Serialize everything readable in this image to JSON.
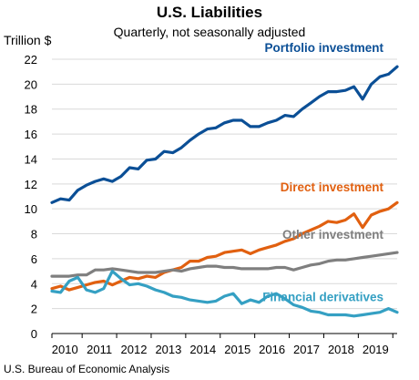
{
  "chart_data": {
    "type": "line",
    "title": "U.S. Liabilities",
    "subtitle": "Quarterly, not seasonally adjusted",
    "ylabel": "Trillion $",
    "xlabel": "",
    "source": "U.S. Bureau of Economic Analysis",
    "ylim": [
      0,
      22
    ],
    "yticks": [
      0,
      2,
      4,
      6,
      8,
      10,
      12,
      14,
      16,
      18,
      20,
      22
    ],
    "xticks": [
      "2010",
      "2011",
      "2012",
      "2013",
      "2014",
      "2015",
      "2016",
      "2017",
      "2018",
      "2019"
    ],
    "x_start": "2010-Q1",
    "grid": true,
    "series": [
      {
        "name": "Portfolio investment",
        "color": "#0b4f96",
        "values": [
          10.5,
          10.8,
          10.7,
          11.5,
          11.9,
          12.2,
          12.4,
          12.2,
          12.6,
          13.3,
          13.2,
          13.9,
          14.0,
          14.6,
          14.5,
          14.9,
          15.5,
          16.0,
          16.4,
          16.5,
          16.9,
          17.1,
          17.1,
          16.6,
          16.6,
          16.9,
          17.1,
          17.5,
          17.4,
          18.0,
          18.5,
          19.0,
          19.4,
          19.4,
          19.5,
          19.8,
          18.8,
          20.0,
          20.6,
          20.8,
          21.4
        ]
      },
      {
        "name": "Direct investment",
        "color": "#e16010",
        "values": [
          3.6,
          3.8,
          3.5,
          3.7,
          3.9,
          4.1,
          4.2,
          3.9,
          4.2,
          4.5,
          4.4,
          4.6,
          4.5,
          4.9,
          5.1,
          5.3,
          5.8,
          5.8,
          6.1,
          6.2,
          6.5,
          6.6,
          6.7,
          6.4,
          6.7,
          6.9,
          7.1,
          7.4,
          7.6,
          8.0,
          8.3,
          8.6,
          9.0,
          8.9,
          9.1,
          9.6,
          8.5,
          9.5,
          9.8,
          10.0,
          10.5
        ]
      },
      {
        "name": "Other investment",
        "color": "#7f7f7f",
        "values": [
          4.6,
          4.6,
          4.6,
          4.7,
          4.7,
          5.1,
          5.1,
          5.2,
          5.1,
          5.0,
          4.9,
          4.9,
          4.9,
          5.0,
          5.1,
          5.0,
          5.2,
          5.3,
          5.4,
          5.4,
          5.3,
          5.3,
          5.2,
          5.2,
          5.2,
          5.2,
          5.3,
          5.3,
          5.1,
          5.3,
          5.5,
          5.6,
          5.8,
          5.9,
          5.9,
          6.0,
          6.1,
          6.2,
          6.3,
          6.4,
          6.5
        ]
      },
      {
        "name": "Financial derivatives",
        "color": "#35a0c3",
        "values": [
          3.4,
          3.3,
          4.2,
          4.5,
          3.5,
          3.3,
          3.6,
          5.0,
          4.4,
          3.9,
          4.0,
          3.8,
          3.5,
          3.3,
          3.0,
          2.9,
          2.7,
          2.6,
          2.5,
          2.6,
          3.0,
          3.2,
          2.4,
          2.7,
          2.5,
          3.0,
          3.2,
          2.8,
          2.3,
          2.1,
          1.8,
          1.7,
          1.5,
          1.5,
          1.5,
          1.4,
          1.5,
          1.6,
          1.7,
          2.0,
          1.7
        ]
      }
    ]
  }
}
